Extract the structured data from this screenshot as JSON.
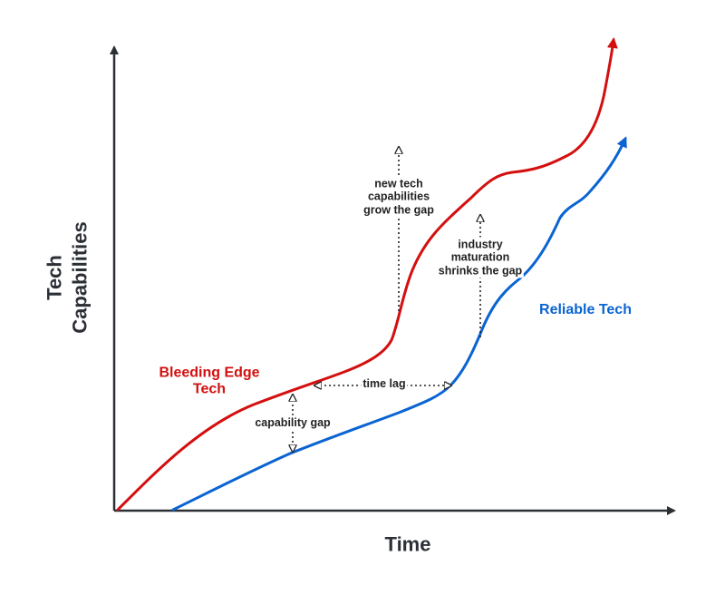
{
  "axes": {
    "x_title": "Time",
    "y_title_lines": [
      "Tech",
      "Capabilities"
    ]
  },
  "series": {
    "bleeding_edge": {
      "lines": [
        "Bleeding Edge",
        "Tech"
      ],
      "color": "#d40f0f"
    },
    "reliable": {
      "label": "Reliable Tech",
      "color": "#0a64d2"
    }
  },
  "annotations": {
    "capability_gap": "capability gap",
    "time_lag": "time lag",
    "new_tech_lines": [
      "new tech",
      "capabilities",
      "grow the gap"
    ],
    "industry_lines": [
      "industry",
      "maturation",
      "shrinks the gap"
    ]
  },
  "colors": {
    "axis": "#2b2f36",
    "annotation": "#222222",
    "background": "#ffffff"
  }
}
